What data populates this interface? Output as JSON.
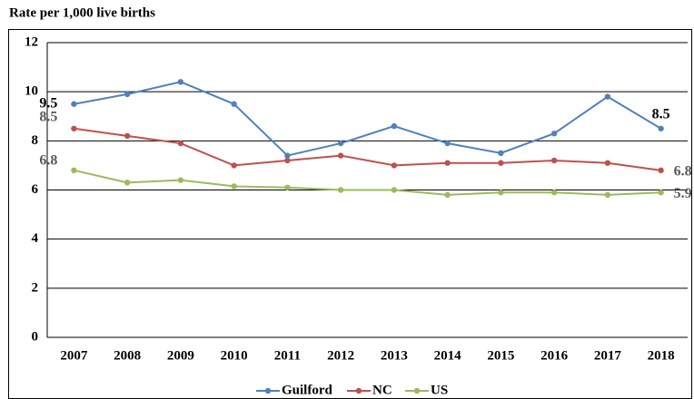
{
  "chart_data": {
    "type": "line",
    "title": "Rate per 1,000 live births",
    "categories": [
      "2007",
      "2008",
      "2009",
      "2010",
      "2011",
      "2012",
      "2013",
      "2014",
      "2015",
      "2016",
      "2017",
      "2018"
    ],
    "series": [
      {
        "name": "Guilford",
        "color": "#4f81bd",
        "values": [
          9.5,
          9.9,
          10.4,
          9.5,
          7.4,
          7.9,
          8.6,
          7.9,
          7.5,
          8.3,
          9.8,
          8.5
        ],
        "value_labels": [
          "9.5",
          null,
          null,
          null,
          null,
          null,
          null,
          null,
          null,
          null,
          null,
          "8.5"
        ]
      },
      {
        "name": "NC",
        "color": "#c0504d",
        "values": [
          8.5,
          8.2,
          7.9,
          7.0,
          7.2,
          7.4,
          7.0,
          7.1,
          7.1,
          7.2,
          7.1,
          6.8
        ],
        "value_labels": [
          "8.5",
          null,
          null,
          null,
          null,
          null,
          null,
          null,
          null,
          null,
          null,
          "6.8"
        ]
      },
      {
        "name": "US",
        "color": "#9bbb59",
        "values": [
          6.8,
          6.3,
          6.4,
          6.15,
          6.1,
          6.0,
          6.0,
          5.8,
          5.9,
          5.9,
          5.8,
          5.9
        ],
        "value_labels": [
          "6.8",
          null,
          null,
          null,
          null,
          null,
          null,
          null,
          null,
          null,
          null,
          "5.9"
        ]
      }
    ],
    "ylim": [
      0,
      12
    ],
    "yticks": [
      0,
      2,
      4,
      6,
      8,
      10,
      12
    ],
    "grid": true,
    "legend": "bottom"
  }
}
